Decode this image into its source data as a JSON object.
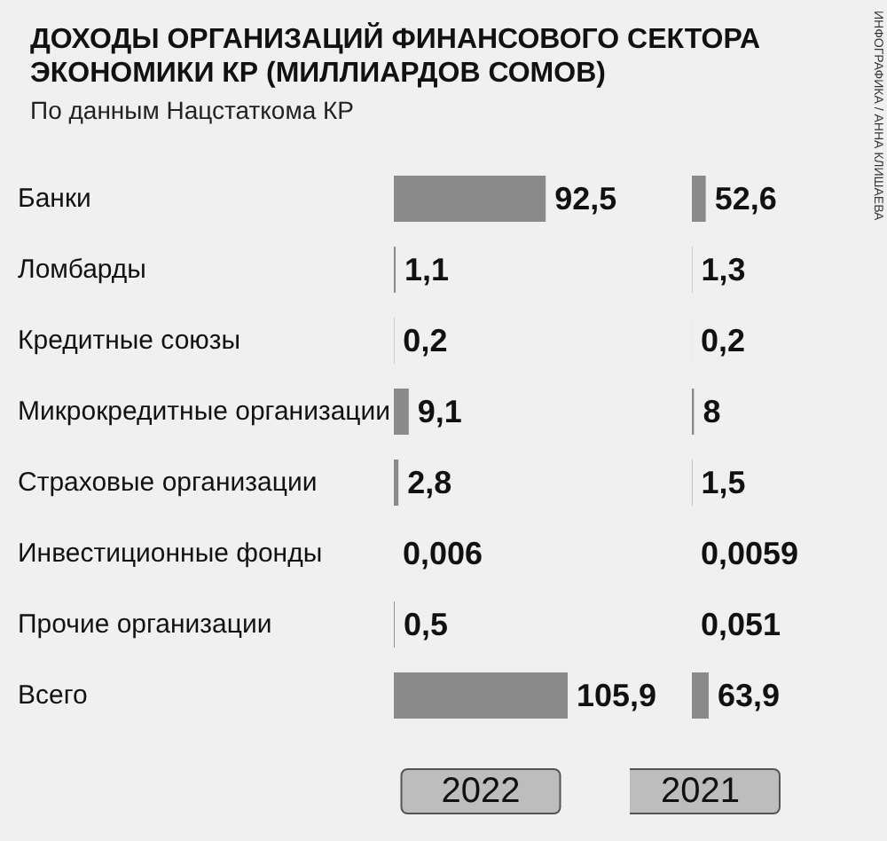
{
  "chart_data": [
    {
      "type": "bar",
      "orientation": "horizontal",
      "title": "ДОХОДЫ ОРГАНИЗАЦИЙ ФИНАНСОВОГО СЕКТОРА ЭКОНОМИКИ КР (МИЛЛИАРДОВ СОМОВ)",
      "subtitle": "По данным Нацстаткома КР",
      "xlabel": "2022",
      "annotations": [
        "ИНФОГРАФИКА / АННА КЛИШАЕВА"
      ],
      "tick_labels": "y",
      "grid": false,
      "categories": [
        "Банки",
        "Ломбарды",
        "Кредитные союзы",
        "Микрокредитные организации",
        "Страховые организации",
        "Инвестиционные фонды",
        "Прочие организации",
        "Всего"
      ],
      "values": [
        92.5,
        1.1,
        0.2,
        9.1,
        2.8,
        0.006,
        0.5,
        105.9
      ],
      "color": "#8a8a8a",
      "value_labels": [
        "92,5",
        "1,1",
        "0,2",
        "9,1",
        "2,8",
        "0,006",
        "0,5",
        "105,9"
      ]
    },
    {
      "type": "bar",
      "orientation": "horizontal",
      "xlabel": "2021",
      "grid": false,
      "categories": [
        null,
        null,
        null,
        null,
        null,
        null,
        null,
        null
      ],
      "values": [
        52.6,
        1.3,
        0.2,
        8,
        1.5,
        0.0059,
        0.051,
        63.9
      ],
      "color": "#8a8a8a",
      "value_labels": [
        "52,6",
        "1,3",
        "0,2",
        "8",
        "1,5",
        "0,0059",
        "0,051",
        "63,9"
      ]
    }
  ]
}
